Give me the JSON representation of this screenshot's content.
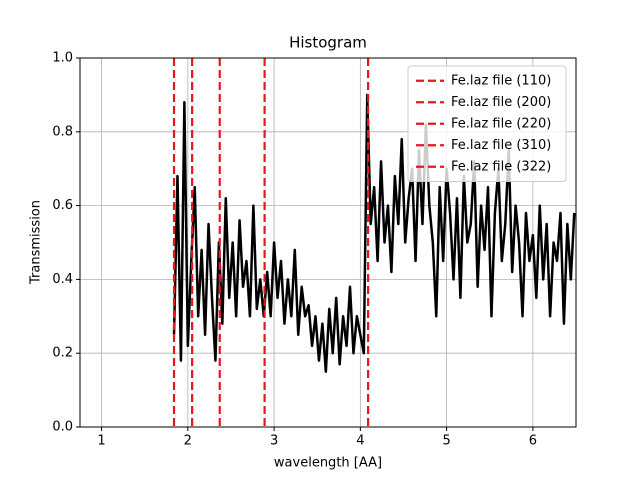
{
  "chart_data": {
    "type": "line",
    "title": "Histogram",
    "xlabel": "wavelength [AA]",
    "ylabel": "Transmission",
    "x": [
      1.84,
      1.88,
      1.92,
      1.96,
      2.0,
      2.04,
      2.08,
      2.12,
      2.16,
      2.2,
      2.24,
      2.28,
      2.32,
      2.36,
      2.4,
      2.44,
      2.48,
      2.52,
      2.56,
      2.6,
      2.64,
      2.68,
      2.72,
      2.76,
      2.8,
      2.84,
      2.88,
      2.92,
      2.96,
      3.0,
      3.04,
      3.08,
      3.12,
      3.16,
      3.2,
      3.24,
      3.28,
      3.32,
      3.36,
      3.4,
      3.44,
      3.48,
      3.52,
      3.56,
      3.6,
      3.64,
      3.68,
      3.72,
      3.76,
      3.8,
      3.84,
      3.88,
      3.92,
      3.96,
      4.0,
      4.04,
      4.08,
      4.12,
      4.16,
      4.2,
      4.24,
      4.28,
      4.32,
      4.36,
      4.4,
      4.44,
      4.48,
      4.52,
      4.56,
      4.6,
      4.64,
      4.68,
      4.72,
      4.76,
      4.8,
      4.84,
      4.88,
      4.92,
      4.96,
      5.0,
      5.04,
      5.08,
      5.12,
      5.16,
      5.2,
      5.24,
      5.28,
      5.32,
      5.36,
      5.4,
      5.44,
      5.48,
      5.52,
      5.56,
      5.6,
      5.64,
      5.68,
      5.72,
      5.76,
      5.8,
      5.84,
      5.88,
      5.92,
      5.96,
      6.0,
      6.04,
      6.08,
      6.12,
      6.16,
      6.2,
      6.24,
      6.28,
      6.32,
      6.36,
      6.4,
      6.44,
      6.48
    ],
    "series": [
      {
        "color": "#000000",
        "values": [
          0.25,
          0.68,
          0.18,
          0.88,
          0.22,
          0.45,
          0.65,
          0.3,
          0.48,
          0.25,
          0.55,
          0.35,
          0.18,
          0.5,
          0.28,
          0.62,
          0.35,
          0.5,
          0.3,
          0.56,
          0.38,
          0.45,
          0.3,
          0.6,
          0.32,
          0.4,
          0.3,
          0.42,
          0.3,
          0.5,
          0.35,
          0.45,
          0.28,
          0.4,
          0.3,
          0.48,
          0.25,
          0.38,
          0.3,
          0.33,
          0.22,
          0.3,
          0.18,
          0.28,
          0.15,
          0.32,
          0.2,
          0.35,
          0.17,
          0.3,
          0.22,
          0.38,
          0.2,
          0.3,
          0.25,
          0.2,
          0.9,
          0.55,
          0.65,
          0.45,
          0.72,
          0.5,
          0.6,
          0.42,
          0.68,
          0.55,
          0.78,
          0.5,
          0.62,
          0.7,
          0.45,
          0.75,
          0.55,
          0.82,
          0.6,
          0.5,
          0.3,
          0.65,
          0.45,
          0.7,
          0.58,
          0.4,
          0.62,
          0.35,
          0.68,
          0.5,
          0.55,
          0.72,
          0.38,
          0.6,
          0.48,
          0.65,
          0.3,
          0.58,
          0.7,
          0.45,
          0.55,
          0.75,
          0.42,
          0.6,
          0.5,
          0.3,
          0.58,
          0.45,
          0.52,
          0.35,
          0.6,
          0.4,
          0.55,
          0.3,
          0.5,
          0.45,
          0.58,
          0.28,
          0.55,
          0.4,
          0.58
        ]
      }
    ],
    "vlines": [
      {
        "name": "Fe.laz file (110)",
        "x": 1.84,
        "color": "#e8171c"
      },
      {
        "name": "Fe.laz file (200)",
        "x": 2.05,
        "color": "#e8171c"
      },
      {
        "name": "Fe.laz file (220)",
        "x": 2.37,
        "color": "#e8171c"
      },
      {
        "name": "Fe.laz file (310)",
        "x": 2.89,
        "color": "#e8171c"
      },
      {
        "name": "Fe.laz file (322)",
        "x": 4.09,
        "color": "#e8171c"
      }
    ],
    "xlim": [
      0.75,
      6.5
    ],
    "xticks": [
      1,
      2,
      3,
      4,
      5,
      6
    ],
    "ylim": [
      0,
      1
    ],
    "yticks": [
      {
        "value": 0,
        "label": "0.0"
      },
      0.2,
      0.4,
      0.6,
      0.8,
      {
        "value": 1,
        "label": "1.0"
      }
    ],
    "grid": true,
    "legend": "upper right"
  }
}
